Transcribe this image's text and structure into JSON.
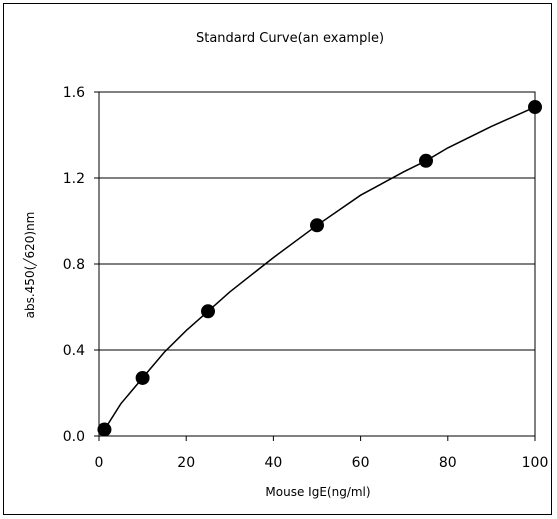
{
  "chart_data": {
    "type": "scatter",
    "title": "Standard Curve(an example)",
    "xlabel": "Mouse IgE(ng/ml)",
    "ylabel": "abs.450(╱620)nm",
    "xlim": [
      0,
      100
    ],
    "ylim": [
      0,
      1.6
    ],
    "xticks": [
      "0",
      "20",
      "40",
      "60",
      "80",
      "100"
    ],
    "yticks": [
      "0.0",
      "0.4",
      "0.8",
      "1.2",
      "1.6"
    ],
    "grid": "horizontal",
    "legend": "none",
    "colors": {
      "marker": "#000000",
      "line": "#000000",
      "grid": "#000000"
    },
    "x": [
      1.25,
      10,
      25,
      50,
      75,
      100
    ],
    "y": [
      0.03,
      0.27,
      0.58,
      0.98,
      1.28,
      1.53
    ],
    "fit_line": {
      "type": "line",
      "x": [
        1.25,
        5,
        10,
        15,
        20,
        25,
        30,
        40,
        50,
        60,
        70,
        75,
        80,
        90,
        100
      ],
      "y": [
        0.03,
        0.15,
        0.27,
        0.39,
        0.49,
        0.58,
        0.67,
        0.83,
        0.98,
        1.12,
        1.23,
        1.28,
        1.34,
        1.44,
        1.53
      ]
    }
  }
}
